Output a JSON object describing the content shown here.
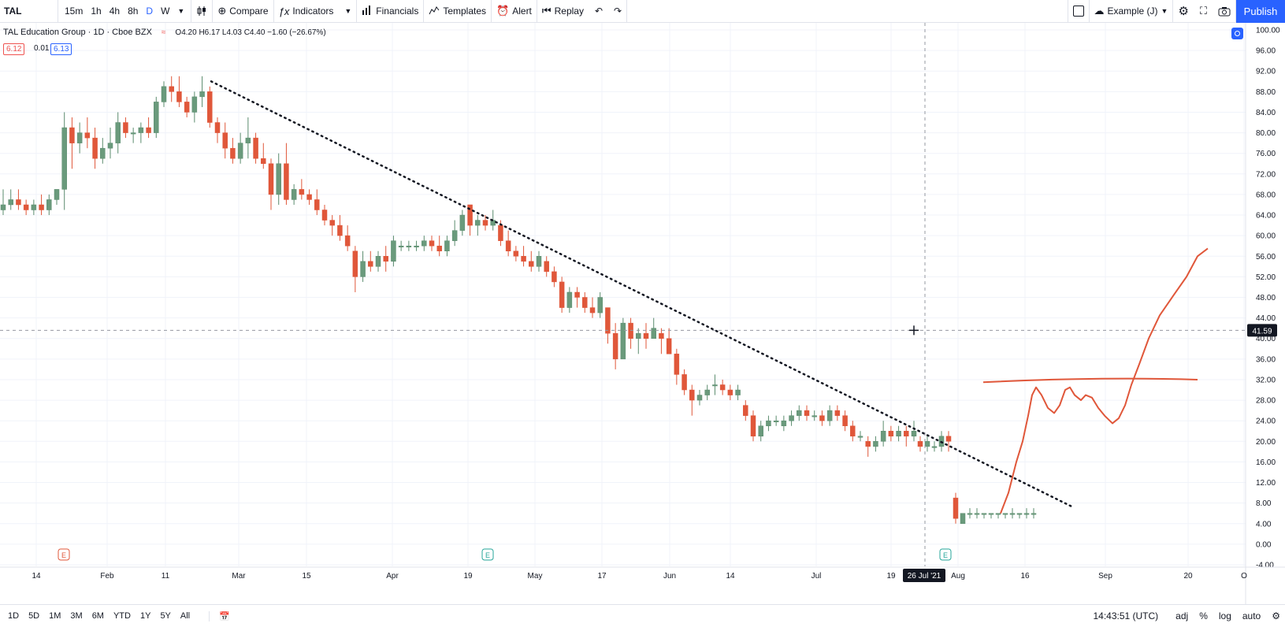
{
  "toolbar": {
    "symbol": "TAL",
    "intervals": [
      "15m",
      "1h",
      "4h",
      "8h",
      "D",
      "W"
    ],
    "active_interval": "D",
    "compare": "Compare",
    "indicators": "Indicators",
    "financials": "Financials",
    "templates": "Templates",
    "alert": "Alert",
    "replay": "Replay",
    "layout_name": "Example (J)",
    "publish": "Publish"
  },
  "legend": {
    "title": "TAL Education Group · 1D · Cboe BZX",
    "ohlc": "O4.20 H6.17 L4.03 C4.40 −1.60 (−26.67%)",
    "bid": "6.12",
    "spread": "0.01",
    "ask": "6.13"
  },
  "bottombar": {
    "ranges": [
      "1D",
      "5D",
      "1M",
      "3M",
      "6M",
      "YTD",
      "1Y",
      "5Y",
      "All"
    ],
    "time": "14:43:51 (UTC)",
    "adj": "adj",
    "percent": "%",
    "log": "log",
    "auto": "auto"
  },
  "chart_data": {
    "type": "candlestick",
    "symbol": "TAL",
    "crosshair_price": "41.59",
    "crosshair_date": "26 Jul '21",
    "y_ticks": [
      "100.00",
      "96.00",
      "92.00",
      "88.00",
      "84.00",
      "80.00",
      "76.00",
      "72.00",
      "68.00",
      "64.00",
      "60.00",
      "56.00",
      "52.00",
      "48.00",
      "44.00",
      "40.00",
      "36.00",
      "32.00",
      "28.00",
      "24.00",
      "20.00",
      "16.00",
      "12.00",
      "8.00",
      "4.00",
      "0.00",
      "-4.00"
    ],
    "x_ticks": [
      "14",
      "Feb",
      "11",
      "Mar",
      "15",
      "Apr",
      "19",
      "May",
      "17",
      "Jun",
      "14",
      "Jul",
      "19",
      "Aug",
      "16",
      "Sep",
      "20",
      "O"
    ],
    "ylim": [
      -4,
      100
    ],
    "grid": true,
    "candles": [
      [
        65,
        69,
        64,
        66
      ],
      [
        66,
        69,
        65,
        67
      ],
      [
        67,
        69,
        65,
        66
      ],
      [
        66,
        67,
        64,
        65
      ],
      [
        65,
        67,
        64,
        66
      ],
      [
        66,
        68,
        64,
        65
      ],
      [
        65,
        68,
        64,
        67
      ],
      [
        67,
        69,
        66,
        69
      ],
      [
        69,
        84,
        65,
        81
      ],
      [
        81,
        83,
        73,
        78
      ],
      [
        78,
        82,
        76,
        80
      ],
      [
        80,
        83,
        77,
        79
      ],
      [
        79,
        81,
        73,
        75
      ],
      [
        75,
        79,
        74,
        77
      ],
      [
        77,
        81,
        75,
        78
      ],
      [
        78,
        84,
        76,
        82
      ],
      [
        82,
        83,
        79,
        80
      ],
      [
        80,
        81,
        78,
        80
      ],
      [
        80,
        82,
        78,
        81
      ],
      [
        81,
        83,
        79,
        80
      ],
      [
        80,
        87,
        79,
        86
      ],
      [
        86,
        90,
        85,
        89
      ],
      [
        89,
        91,
        86,
        88
      ],
      [
        88,
        91,
        85,
        86
      ],
      [
        86,
        87,
        83,
        84
      ],
      [
        84,
        88,
        82,
        87
      ],
      [
        87,
        91,
        85,
        88
      ],
      [
        88,
        89,
        81,
        82
      ],
      [
        82,
        83,
        78,
        80
      ],
      [
        80,
        82,
        75,
        77
      ],
      [
        77,
        79,
        74,
        75
      ],
      [
        75,
        80,
        74,
        78
      ],
      [
        78,
        83,
        75,
        79
      ],
      [
        79,
        80,
        74,
        75
      ],
      [
        75,
        78,
        73,
        74
      ],
      [
        74,
        75,
        65,
        68
      ],
      [
        68,
        76,
        66,
        74
      ],
      [
        74,
        78,
        66,
        67
      ],
      [
        67,
        70,
        66,
        69
      ],
      [
        69,
        71,
        67,
        68
      ],
      [
        68,
        69,
        66,
        67
      ],
      [
        67,
        69,
        64,
        65
      ],
      [
        65,
        66,
        62,
        63
      ],
      [
        63,
        64,
        60,
        62
      ],
      [
        62,
        64,
        59,
        60
      ],
      [
        60,
        62,
        57,
        58
      ],
      [
        57,
        58,
        49,
        52
      ],
      [
        52,
        57,
        51,
        55
      ],
      [
        55,
        57,
        53,
        54
      ],
      [
        54,
        57,
        53,
        56
      ],
      [
        56,
        58,
        53,
        55
      ],
      [
        55,
        60,
        54,
        59
      ],
      [
        58,
        59,
        57,
        58
      ],
      [
        58,
        59,
        57,
        58
      ],
      [
        58,
        59,
        57,
        58
      ],
      [
        58,
        60,
        57,
        59
      ],
      [
        59,
        60,
        57,
        58
      ],
      [
        58,
        60,
        56,
        57
      ],
      [
        57,
        60,
        56,
        59
      ],
      [
        59,
        63,
        58,
        61
      ],
      [
        61,
        65,
        60,
        64
      ],
      [
        66,
        66,
        60,
        62
      ],
      [
        62,
        64,
        60,
        63
      ],
      [
        63,
        64,
        61,
        62
      ],
      [
        62,
        65,
        61,
        63
      ],
      [
        62,
        63,
        58,
        59
      ],
      [
        59,
        61,
        56,
        57
      ],
      [
        57,
        58,
        55,
        56
      ],
      [
        56,
        58,
        54,
        55
      ],
      [
        55,
        57,
        53,
        54
      ],
      [
        54,
        57,
        53,
        56
      ],
      [
        55,
        56,
        52,
        53
      ],
      [
        53,
        54,
        50,
        51
      ],
      [
        51,
        52,
        45,
        46
      ],
      [
        46,
        50,
        45,
        49
      ],
      [
        49,
        50,
        46,
        48
      ],
      [
        48,
        49,
        45,
        46
      ],
      [
        46,
        48,
        44,
        45
      ],
      [
        45,
        49,
        44,
        48
      ],
      [
        46,
        46,
        39,
        41
      ],
      [
        41,
        43,
        34,
        36
      ],
      [
        36,
        44,
        37,
        43
      ],
      [
        43,
        44,
        38,
        40
      ],
      [
        40,
        42,
        37,
        41
      ],
      [
        41,
        43,
        38,
        40
      ],
      [
        40,
        44,
        40,
        42
      ],
      [
        41,
        42,
        37,
        40
      ],
      [
        40,
        42,
        37,
        37
      ],
      [
        37,
        38,
        31,
        33
      ],
      [
        33,
        34,
        29,
        30
      ],
      [
        30,
        31,
        25,
        28
      ],
      [
        28,
        30,
        27,
        29
      ],
      [
        29,
        31,
        28,
        30
      ],
      [
        31,
        33,
        29,
        31
      ],
      [
        31,
        32,
        29,
        30
      ],
      [
        30,
        31,
        28,
        29
      ],
      [
        29,
        31,
        28,
        30
      ],
      [
        27,
        28,
        24,
        25
      ],
      [
        25,
        26,
        20,
        21
      ],
      [
        21,
        24,
        20,
        23
      ],
      [
        23,
        25,
        22,
        24
      ],
      [
        24,
        25,
        23,
        24
      ],
      [
        23,
        25,
        22,
        24
      ],
      [
        24,
        26,
        23,
        25
      ],
      [
        25,
        27,
        24,
        26
      ],
      [
        26,
        27,
        24,
        25
      ],
      [
        25,
        26,
        24,
        25
      ],
      [
        25,
        26,
        23,
        24
      ],
      [
        24,
        27,
        23,
        26
      ],
      [
        26,
        27,
        24,
        25
      ],
      [
        25,
        26,
        22,
        23
      ],
      [
        23,
        24,
        20,
        21
      ],
      [
        21,
        22,
        20,
        21
      ],
      [
        20,
        21,
        17,
        19
      ],
      [
        19,
        21,
        18,
        20
      ],
      [
        20,
        24,
        19,
        22
      ],
      [
        22,
        23,
        20,
        21
      ],
      [
        21,
        23,
        20,
        22
      ],
      [
        22,
        23,
        19,
        21
      ],
      [
        21,
        24,
        20,
        22
      ],
      [
        20,
        21,
        18,
        19
      ],
      [
        19,
        21,
        18,
        20
      ],
      [
        19,
        20,
        18,
        19
      ],
      [
        19,
        22,
        18,
        21
      ],
      [
        21,
        22,
        18,
        20
      ],
      [
        9,
        10,
        4,
        5
      ],
      [
        4,
        6,
        4,
        6
      ],
      [
        6,
        7,
        5,
        6
      ],
      [
        6,
        7,
        5,
        6
      ],
      [
        6,
        6,
        5,
        6
      ],
      [
        6,
        6,
        5,
        6
      ],
      [
        6,
        6,
        5,
        6
      ],
      [
        6,
        6,
        5,
        6
      ],
      [
        6,
        7,
        5,
        6
      ],
      [
        6,
        6,
        5,
        6
      ],
      [
        6,
        7,
        5,
        6
      ],
      [
        6,
        7,
        5,
        6
      ]
    ]
  }
}
